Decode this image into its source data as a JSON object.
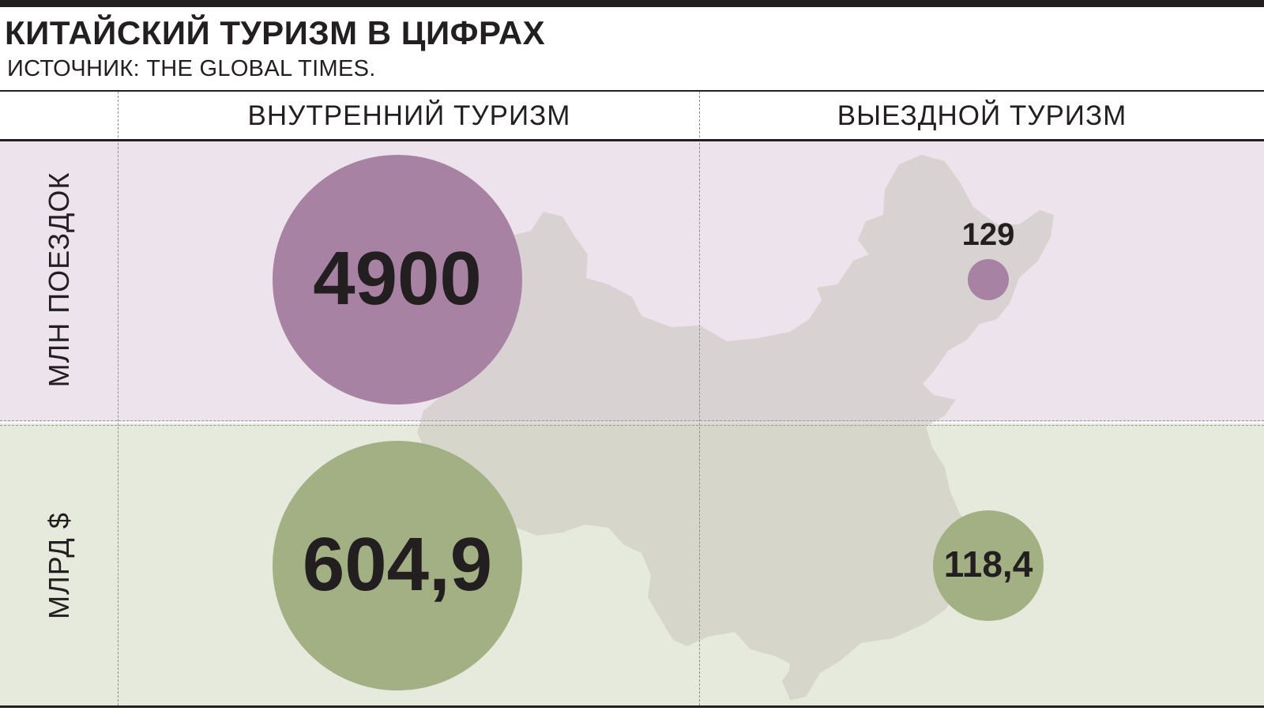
{
  "title": "КИТАЙСКИЙ ТУРИЗМ В ЦИФРАХ",
  "subtitle": "ИСТОЧНИК: THE GLOBAL TIMES.",
  "colors": {
    "trips_bubble": "#a882a3",
    "money_bubble": "#a2b083",
    "trips_band": "#ede3ec",
    "money_band": "#e6eadc",
    "map_fill": "#c8c5bd",
    "text": "#231f20"
  },
  "chart_data": {
    "type": "bubble-table",
    "columns": [
      "ВНУТРЕННИЙ ТУРИЗМ",
      "ВЫЕЗДНОЙ ТУРИЗМ"
    ],
    "rows": [
      {
        "label": "МЛН ПОЕЗДОК",
        "values": [
          4900,
          129
        ],
        "display": [
          "4900",
          "129"
        ]
      },
      {
        "label": "МЛРД $",
        "values": [
          604.9,
          118.4
        ],
        "display": [
          "604,9",
          "118,4"
        ]
      }
    ]
  }
}
